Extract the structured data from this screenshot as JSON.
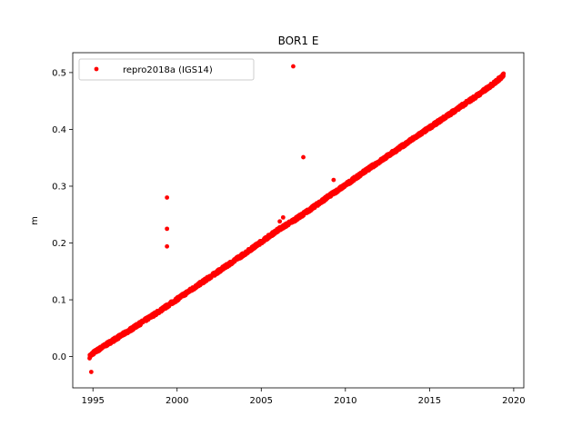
{
  "chart_data": {
    "type": "scatter",
    "title": "BOR1 E",
    "xlabel": "",
    "ylabel": "m",
    "xlim": [
      1993.8,
      2020.6
    ],
    "ylim": [
      -0.055,
      0.535
    ],
    "xticks": [
      1995,
      2000,
      2005,
      2010,
      2015,
      2020
    ],
    "yticks": [
      0.0,
      0.1,
      0.2,
      0.3,
      0.4,
      0.5
    ],
    "ytick_labels": [
      "0.0",
      "0.1",
      "0.2",
      "0.3",
      "0.4",
      "0.5"
    ],
    "grid": false,
    "legend": {
      "placement": "top-left",
      "entries": [
        "repro2018a (IGS14)"
      ]
    },
    "series": [
      {
        "name": "repro2018a (IGS14)",
        "color": "#ff0000",
        "marker": "circle",
        "trend": {
          "x": [
            1994.8,
            1995.0,
            1996.0,
            1997.0,
            1998.0,
            1999.0,
            2000.0,
            2001.0,
            2002.0,
            2003.0,
            2004.0,
            2005.0,
            2006.0,
            2007.0,
            2008.0,
            2009.0,
            2010.0,
            2011.0,
            2012.0,
            2013.0,
            2014.0,
            2015.0,
            2016.0,
            2017.0,
            2018.0,
            2019.0,
            2019.4
          ],
          "y": [
            0.0,
            0.006,
            0.025,
            0.043,
            0.062,
            0.081,
            0.101,
            0.121,
            0.141,
            0.161,
            0.181,
            0.202,
            0.223,
            0.241,
            0.261,
            0.282,
            0.302,
            0.323,
            0.343,
            0.363,
            0.383,
            0.403,
            0.423,
            0.443,
            0.463,
            0.485,
            0.496
          ]
        },
        "outliers": {
          "x": [
            1994.9,
            1999.4,
            1999.4,
            1999.4,
            2006.1,
            2006.3,
            2006.9,
            2007.5,
            2009.3
          ],
          "y": [
            -0.027,
            0.28,
            0.225,
            0.194,
            0.238,
            0.245,
            0.511,
            0.351,
            0.311
          ]
        }
      }
    ]
  }
}
